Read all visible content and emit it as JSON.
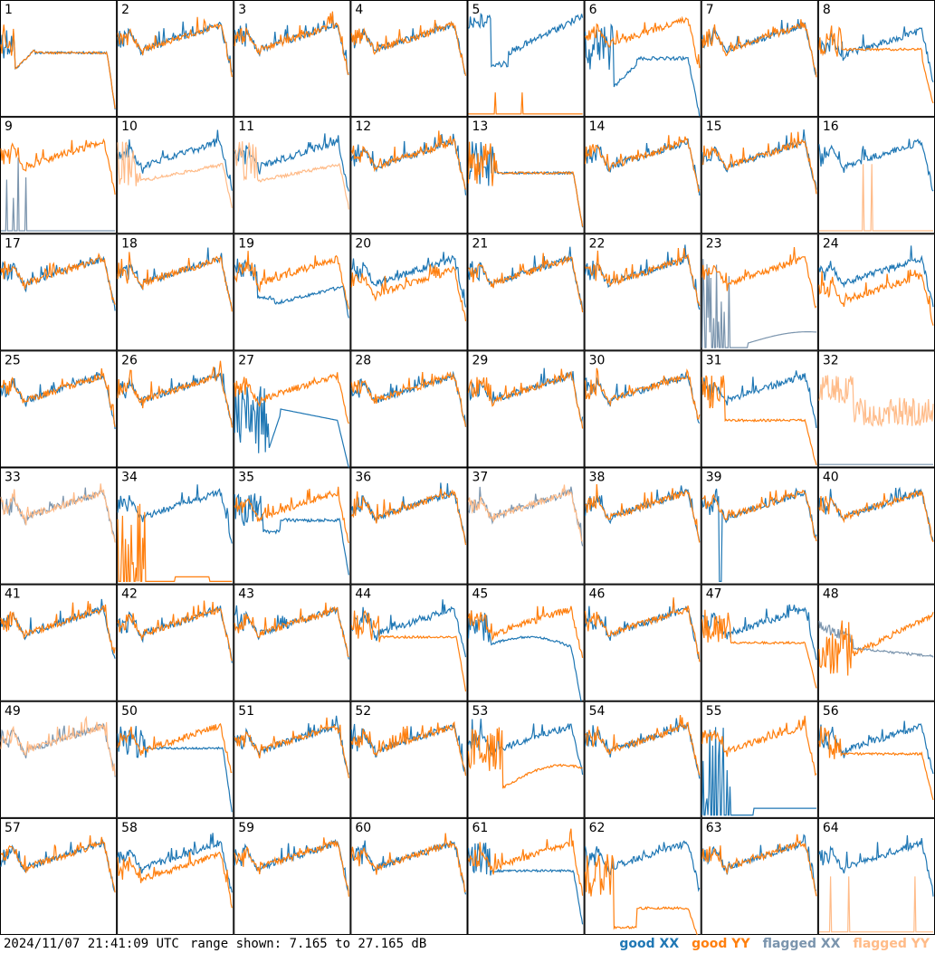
{
  "chart_data": {
    "type": "line",
    "grid": {
      "rows": 8,
      "cols": 8
    },
    "range_db": [
      7.165,
      27.165
    ],
    "colors": {
      "good_xx": "#1f77b4",
      "good_yy": "#ff7f0e",
      "flagged_xx": "#7a94ad",
      "flagged_yy": "#ffbb88"
    },
    "panels": [
      {
        "label": "1",
        "xx": "gx1",
        "yy": "gy1"
      },
      {
        "label": "2",
        "xx": "n",
        "yy": "n"
      },
      {
        "label": "3",
        "xx": "n",
        "yy": "n"
      },
      {
        "label": "4",
        "xx": "n",
        "yy": "n"
      },
      {
        "label": "5",
        "xx": "gx5",
        "yy": "gy5"
      },
      {
        "label": "6",
        "xx": "gx6",
        "yy": "gy6"
      },
      {
        "label": "7",
        "xx": "n",
        "yy": "n"
      },
      {
        "label": "8",
        "xx": "gx8",
        "yy": "gy8"
      },
      {
        "label": "9",
        "xx": "fx9",
        "yy": "n"
      },
      {
        "label": "10",
        "xx": "n",
        "yy": "fy10"
      },
      {
        "label": "11",
        "xx": "n",
        "yy": "fy11"
      },
      {
        "label": "12",
        "xx": "n",
        "yy": "n"
      },
      {
        "label": "13",
        "xx": "gx13",
        "yy": "gy13"
      },
      {
        "label": "14",
        "xx": "n",
        "yy": "n"
      },
      {
        "label": "15",
        "xx": "n",
        "yy": "n"
      },
      {
        "label": "16",
        "xx": "n",
        "yy": "fy16"
      },
      {
        "label": "17",
        "xx": "n",
        "yy": "n"
      },
      {
        "label": "18",
        "xx": "n",
        "yy": "n"
      },
      {
        "label": "19",
        "xx": "gx19",
        "yy": "n"
      },
      {
        "label": "20",
        "xx": "n",
        "yy": "gy20"
      },
      {
        "label": "21",
        "xx": "n",
        "yy": "n"
      },
      {
        "label": "22",
        "xx": "n",
        "yy": "n"
      },
      {
        "label": "23",
        "xx": "fx23",
        "yy": "n"
      },
      {
        "label": "24",
        "xx": "n",
        "yy": "gy24"
      },
      {
        "label": "25",
        "xx": "n",
        "yy": "n"
      },
      {
        "label": "26",
        "xx": "n",
        "yy": "n"
      },
      {
        "label": "27",
        "xx": "gx27",
        "yy": "n"
      },
      {
        "label": "28",
        "xx": "n",
        "yy": "n"
      },
      {
        "label": "29",
        "xx": "n",
        "yy": "n"
      },
      {
        "label": "30",
        "xx": "n",
        "yy": "n"
      },
      {
        "label": "31",
        "xx": "n",
        "yy": "gy31"
      },
      {
        "label": "32",
        "xx": "fx32",
        "yy": "fy32"
      },
      {
        "label": "33",
        "xx": "fn",
        "yy": "fn"
      },
      {
        "label": "34",
        "xx": "n",
        "yy": "gy34"
      },
      {
        "label": "35",
        "xx": "gx35",
        "yy": "n"
      },
      {
        "label": "36",
        "xx": "n",
        "yy": "n"
      },
      {
        "label": "37",
        "xx": "fn",
        "yy": "fn"
      },
      {
        "label": "38",
        "xx": "n",
        "yy": "n"
      },
      {
        "label": "39",
        "xx": "gx39",
        "yy": "n"
      },
      {
        "label": "40",
        "xx": "n",
        "yy": "n"
      },
      {
        "label": "41",
        "xx": "n",
        "yy": "n"
      },
      {
        "label": "42",
        "xx": "n",
        "yy": "n"
      },
      {
        "label": "43",
        "xx": "n",
        "yy": "n"
      },
      {
        "label": "44",
        "xx": "n",
        "yy": "gy44"
      },
      {
        "label": "45",
        "xx": "gx45",
        "yy": "gy45"
      },
      {
        "label": "46",
        "xx": "n",
        "yy": "n"
      },
      {
        "label": "47",
        "xx": "n",
        "yy": "gy47"
      },
      {
        "label": "48",
        "xx": "fx48",
        "yy": "gy48"
      },
      {
        "label": "49",
        "xx": "fn",
        "yy": "fn"
      },
      {
        "label": "50",
        "xx": "gx50",
        "yy": "n"
      },
      {
        "label": "51",
        "xx": "n",
        "yy": "n"
      },
      {
        "label": "52",
        "xx": "n",
        "yy": "n"
      },
      {
        "label": "53",
        "xx": "n",
        "yy": "gy53"
      },
      {
        "label": "54",
        "xx": "n",
        "yy": "n"
      },
      {
        "label": "55",
        "xx": "gx55",
        "yy": "n"
      },
      {
        "label": "56",
        "xx": "n",
        "yy": "gy56"
      },
      {
        "label": "57",
        "xx": "n",
        "yy": "n"
      },
      {
        "label": "58",
        "xx": "n",
        "yy": "gy58"
      },
      {
        "label": "59",
        "xx": "n",
        "yy": "n"
      },
      {
        "label": "60",
        "xx": "n",
        "yy": "n"
      },
      {
        "label": "61",
        "xx": "gx61",
        "yy": "n"
      },
      {
        "label": "62",
        "xx": "n",
        "yy": "gy62"
      },
      {
        "label": "63",
        "xx": "n",
        "yy": "n"
      },
      {
        "label": "64",
        "xx": "n",
        "yy": "fy64"
      }
    ]
  },
  "footer": {
    "timestamp": "2024/11/07 21:41:09 UTC",
    "range_text": "range shown: 7.165 to 27.165 dB"
  },
  "legend": {
    "good_xx": "good XX",
    "good_yy": "good YY",
    "flagged_xx": "flagged XX",
    "flagged_yy": "flagged YY"
  }
}
